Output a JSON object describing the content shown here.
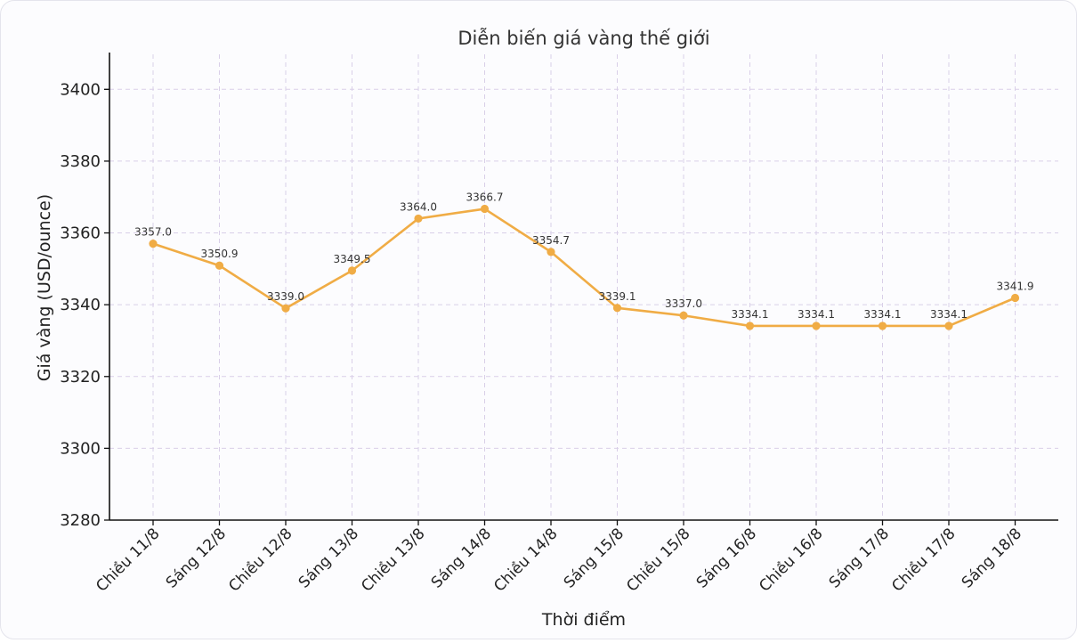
{
  "chart_data": {
    "type": "line",
    "title": "Diễn biến giá vàng thế giới",
    "xlabel": "Thời điểm",
    "ylabel": "Giá vàng (USD/ounce)",
    "ylim": [
      3280,
      3410
    ],
    "yticks": [
      3280,
      3300,
      3320,
      3340,
      3360,
      3380,
      3400
    ],
    "grid": true,
    "categories": [
      "Chiều 11/8",
      "Sáng 12/8",
      "Chiều 12/8",
      "Sáng 13/8",
      "Chiều 13/8",
      "Sáng 14/8",
      "Chiều 14/8",
      "Sáng 15/8",
      "Chiều 15/8",
      "Sáng 16/8",
      "Chiều 16/8",
      "Sáng 17/8",
      "Chiều 17/8",
      "Sáng 18/8"
    ],
    "series": [
      {
        "values": [
          3357.0,
          3350.9,
          3339.0,
          3349.5,
          3364.0,
          3366.7,
          3354.7,
          3339.1,
          3337.0,
          3334.1,
          3334.1,
          3334.1,
          3334.1,
          3341.9
        ],
        "labels": [
          "3357.0",
          "3350.9",
          "3339.0",
          "3349.5",
          "3364.0",
          "3366.7",
          "3354.7",
          "3339.1",
          "3337.0",
          "3334.1",
          "3334.1",
          "3334.1",
          "3334.1",
          "3341.9"
        ],
        "color": "#f0ac45"
      }
    ]
  }
}
